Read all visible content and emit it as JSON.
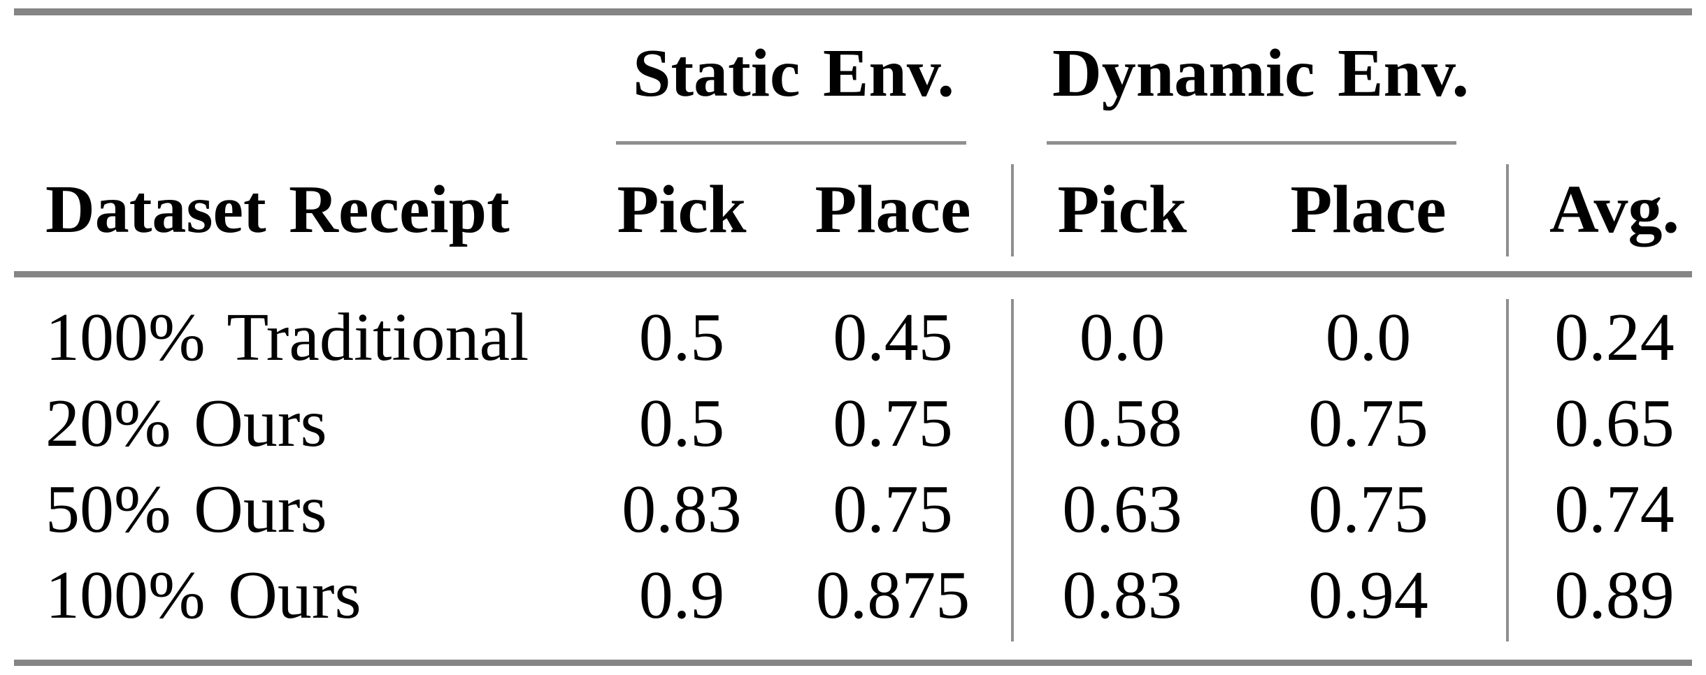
{
  "table": {
    "group_headers": {
      "static": "Static Env.",
      "dynamic": "Dynamic Env."
    },
    "columns": {
      "dataset": "Dataset Receipt",
      "static_pick": "Pick",
      "static_place": "Place",
      "dynamic_pick": "Pick",
      "dynamic_place": "Place",
      "avg": "Avg."
    },
    "rows": [
      {
        "cells": [
          "100% Traditional",
          "0.5",
          "0.45",
          "0.0",
          "0.0",
          "0.24"
        ]
      },
      {
        "cells": [
          "20% Ours",
          "0.5",
          "0.75",
          "0.58",
          "0.75",
          "0.65"
        ]
      },
      {
        "cells": [
          "50% Ours",
          "0.83",
          "0.75",
          "0.63",
          "0.75",
          "0.74"
        ]
      },
      {
        "cells": [
          "100% Ours",
          "0.9",
          "0.875",
          "0.83",
          "0.94",
          "0.89"
        ]
      }
    ]
  },
  "colors": {
    "rule_thick": "#858585",
    "rule_thin": "#8f8f8f",
    "text": "#000000",
    "background": "#ffffff"
  },
  "chart_data": {
    "type": "table",
    "title": "",
    "column_groups": [
      {
        "label": "Static Env.",
        "columns": [
          "Pick",
          "Place"
        ]
      },
      {
        "label": "Dynamic Env.",
        "columns": [
          "Pick",
          "Place"
        ]
      }
    ],
    "columns": [
      "Dataset Receipt",
      "Static Env. Pick",
      "Static Env. Place",
      "Dynamic Env. Pick",
      "Dynamic Env. Place",
      "Avg."
    ],
    "rows": [
      [
        "100% Traditional",
        0.5,
        0.45,
        0.0,
        0.0,
        0.24
      ],
      [
        "20% Ours",
        0.5,
        0.75,
        0.58,
        0.75,
        0.65
      ],
      [
        "50% Ours",
        0.83,
        0.75,
        0.63,
        0.75,
        0.74
      ],
      [
        "100% Ours",
        0.9,
        0.875,
        0.83,
        0.94,
        0.89
      ]
    ]
  }
}
